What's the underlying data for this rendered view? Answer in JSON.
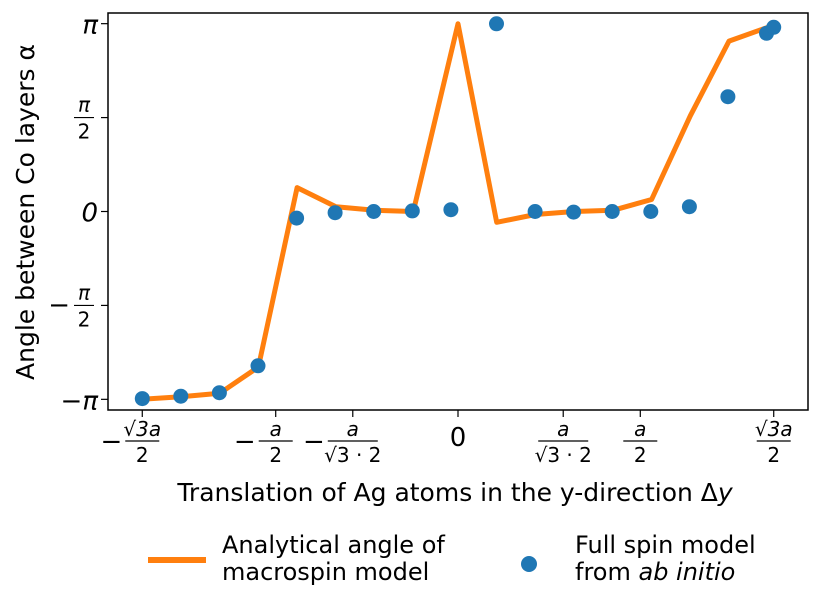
{
  "chart_data": {
    "type": "line",
    "xlabel": "Translation of Ag atoms in the y-direction Δ",
    "xlabel_var": "y",
    "ylabel": "Angle between Co layers α",
    "xlim": [
      -0.48,
      0.48
    ],
    "ylim": [
      -3.32,
      3.32
    ],
    "yticks": [
      {
        "value": -3.14159,
        "label": "−π",
        "kind": "text"
      },
      {
        "value": -1.5708,
        "sign": "−",
        "num": "π",
        "den": "2",
        "kind": "frac"
      },
      {
        "value": 0,
        "label": "0",
        "kind": "text"
      },
      {
        "value": 1.5708,
        "num": "π",
        "den": "2",
        "kind": "frac"
      },
      {
        "value": 3.14159,
        "label": "π",
        "kind": "text"
      }
    ],
    "xticks": [
      {
        "value": -0.433,
        "sign": "−",
        "num": "√3a",
        "den": "2",
        "kind": "frac"
      },
      {
        "value": -0.25,
        "sign": "−",
        "num": "a",
        "den": "2",
        "kind": "frac"
      },
      {
        "value": -0.1443,
        "sign": "−",
        "num": "a",
        "den": "√3 · 2",
        "kind": "frac"
      },
      {
        "value": 0,
        "label": "0",
        "kind": "text"
      },
      {
        "value": 0.1443,
        "num": "a",
        "den": "√3 · 2",
        "kind": "frac"
      },
      {
        "value": 0.25,
        "num": "a",
        "den": "2",
        "kind": "frac"
      },
      {
        "value": 0.433,
        "num": "√3a",
        "den": "2",
        "kind": "frac"
      }
    ],
    "series": [
      {
        "name": "Analytical angle of macrospin model",
        "name_lines": [
          "Analytical angle of",
          "macrospin model"
        ],
        "color": "#ff7f0e",
        "style": "line",
        "x": [
          -0.433,
          -0.3799,
          -0.3268,
          -0.2737,
          -0.2206,
          -0.1675,
          -0.1144,
          -0.0613,
          0,
          0.0531,
          0.1062,
          0.1593,
          0.2124,
          0.2655,
          0.3186,
          0.3717,
          0.4248,
          0.433
        ],
        "y": [
          -3.14,
          -3.1,
          -3.04,
          -2.6,
          0.4,
          0.08,
          0.02,
          0.0,
          3.14,
          -0.18,
          -0.05,
          0.0,
          0.02,
          0.2,
          1.6,
          2.85,
          3.08,
          3.13
        ]
      },
      {
        "name": "Full spin model from ab initio",
        "name_lines": [
          "Full spin model",
          "from ",
          "ab initio"
        ],
        "color": "#1f77b4",
        "style": "scatter",
        "x": [
          -0.433,
          -0.3801,
          -0.3272,
          -0.2743,
          -0.2214,
          -0.1685,
          -0.1156,
          -0.0627,
          -0.0098,
          0.0528,
          0.1057,
          0.1586,
          0.2115,
          0.2644,
          0.3173,
          0.3702,
          0.4231,
          0.433
        ],
        "y": [
          -3.13,
          -3.09,
          -3.03,
          -2.58,
          -0.11,
          -0.02,
          0.0,
          0.01,
          0.03,
          3.14,
          0.0,
          -0.01,
          0.0,
          0.0,
          0.08,
          1.92,
          2.98,
          3.08
        ]
      }
    ],
    "legend_position": "bottom-center"
  }
}
